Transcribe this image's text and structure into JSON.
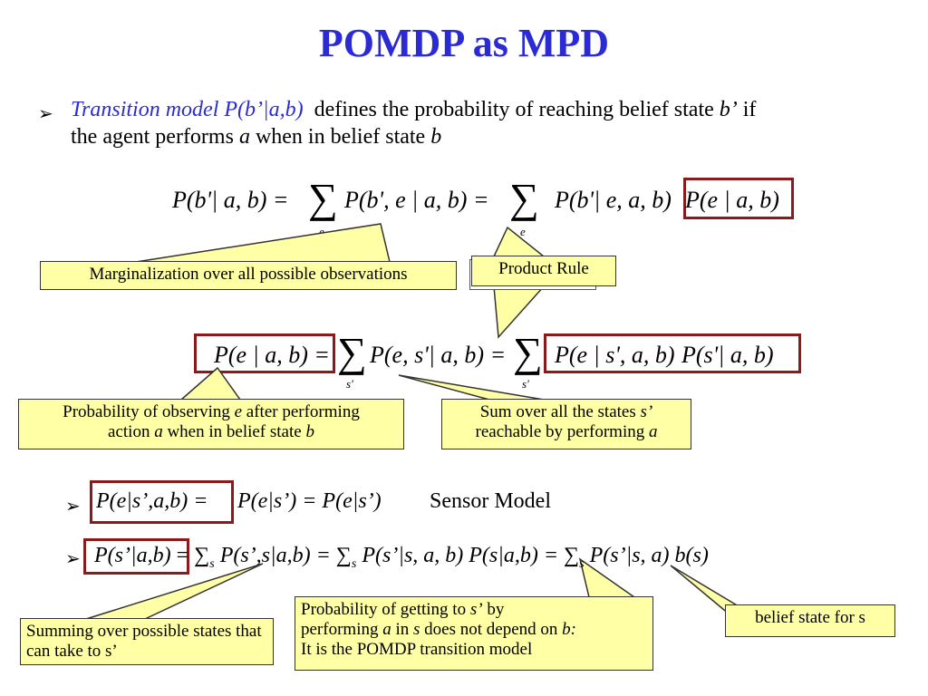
{
  "title": "POMDP as MPD",
  "bullet1": {
    "term": "Transition model P(b’|a,b)",
    "text_a": "defines the probability of reaching belief state",
    "b_prime": "b’",
    "text_b": "if",
    "text_c": "the agent performs",
    "a": "a",
    "text_d": "when in belief state",
    "b": "b"
  },
  "eq1": {
    "lhs": "P(b'| a, b) =",
    "mid": "P(b', e | a, b) =",
    "rhs1": "P(b'| e, a, b)",
    "rhs2": "P(e | a, b)",
    "sum_symbol": "∑",
    "sub": "e"
  },
  "eq2": {
    "lhs": "P(e | a, b) =",
    "mid": "P(e, s'| a, b) =",
    "rhs1": "P(e | s', a, b)",
    "rhs2": "P(s'| a, b)",
    "sum_symbol": "∑",
    "sub": "s'"
  },
  "notes": {
    "marginalization": "Marginalization over all possible observations",
    "product_rule": "Product Rule",
    "prob_obs_a": "Probability of observing",
    "prob_obs_e": "e",
    "prob_obs_b": "after performing",
    "prob_obs_c": "action",
    "prob_obs_a2": "a",
    "prob_obs_d": "when in belief state",
    "prob_obs_b2": "b",
    "sum_states_a": "Sum over all the states",
    "sum_states_s": "s’",
    "sum_states_b": "reachable  by performing",
    "sum_states_a2": "a",
    "summing": "Summing over possible states that can take to s’",
    "prob_get_a": "Probability of getting to",
    "prob_get_s": "s’",
    "prob_get_b": "by",
    "prob_get_c": "performing",
    "prob_get_a2": "a",
    "prob_get_d": "in",
    "prob_get_s2": "s",
    "prob_get_e": "does not depend on",
    "prob_get_b2": "b:",
    "prob_get_f": "It is the POMDP transition model",
    "belief_state": "belief state for s"
  },
  "bullet2": {
    "boxed": "P(e|s’,a,b) =",
    "rest": "P(e|s’) = P(e|s’)",
    "label": "Sensor Model"
  },
  "bullet3": {
    "boxed": "P(s’|a,b)",
    "p1": "= ∑",
    "s1": "s",
    "p2": "P(s’,s|a,b) = ∑",
    "s2": "s",
    "p3": "P(s’|s, a, b) P(s|a,b) = ∑",
    "s3": "s",
    "p4": "P(s’|s, a) b(s)"
  },
  "bullet_glyph": "➢",
  "colors": {
    "title": "#2b2bd6",
    "box": "#8b1a1a",
    "note_bg": "#ffffa6"
  }
}
